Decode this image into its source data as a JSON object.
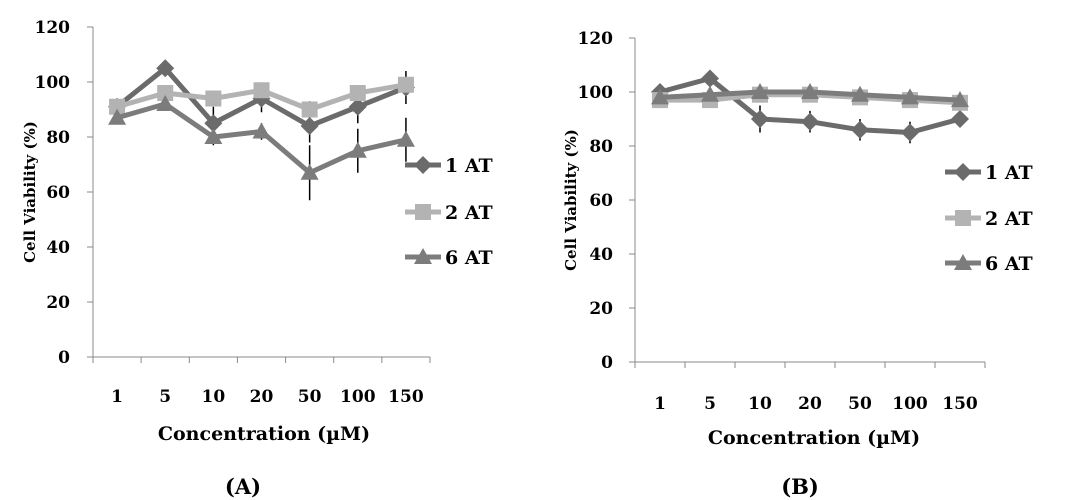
{
  "chart_data": [
    {
      "type": "line",
      "panel_label": "(A)",
      "categories": [
        "1",
        "5",
        "10",
        "20",
        "50",
        "100",
        "150"
      ],
      "xlabel": "Concentration (µM)",
      "ylabel": "Cell Viability (%)",
      "ylim": [
        0,
        120
      ],
      "yticks": [
        "0",
        "20",
        "40",
        "60",
        "80",
        "100",
        "120"
      ],
      "grid": false,
      "legend_placement": "right",
      "series": [
        {
          "name": "1 AT",
          "marker": "diamond",
          "color": "#6b6b6b",
          "values": [
            91,
            105,
            85,
            94,
            84,
            91,
            98
          ],
          "error": [
            2,
            3,
            6,
            5,
            6,
            6,
            6
          ]
        },
        {
          "name": "2 AT",
          "marker": "square",
          "color": "#b3b3b3",
          "values": [
            91,
            96,
            94,
            97,
            90,
            96,
            99
          ],
          "error": [
            2,
            2,
            2,
            2,
            3,
            2,
            2
          ]
        },
        {
          "name": "6 AT",
          "marker": "triangle",
          "color": "#7c7c7c",
          "values": [
            87,
            92,
            80,
            82,
            67,
            75,
            79
          ],
          "error": [
            2,
            2,
            3,
            3,
            10,
            8,
            8
          ]
        }
      ]
    },
    {
      "type": "line",
      "panel_label": "(B)",
      "categories": [
        "1",
        "5",
        "10",
        "20",
        "50",
        "100",
        "150"
      ],
      "xlabel": "Concentration (µM)",
      "ylabel": "Cell Viability (%)",
      "ylim": [
        0,
        120
      ],
      "yticks": [
        "0",
        "20",
        "40",
        "60",
        "80",
        "100",
        "120"
      ],
      "grid": false,
      "legend_placement": "right",
      "series": [
        {
          "name": "1 AT",
          "marker": "diamond",
          "color": "#6b6b6b",
          "values": [
            100,
            105,
            90,
            89,
            86,
            85,
            90
          ],
          "error": [
            2,
            3,
            5,
            4,
            4,
            4,
            3
          ]
        },
        {
          "name": "2 AT",
          "marker": "square",
          "color": "#b3b3b3",
          "values": [
            97,
            97,
            99,
            99,
            98,
            97,
            96
          ],
          "error": [
            2,
            2,
            2,
            2,
            2,
            2,
            2
          ]
        },
        {
          "name": "6 AT",
          "marker": "triangle",
          "color": "#7c7c7c",
          "values": [
            98,
            99,
            100,
            100,
            99,
            98,
            97
          ],
          "error": [
            1,
            1,
            1,
            1,
            1,
            1,
            1
          ]
        }
      ]
    }
  ]
}
